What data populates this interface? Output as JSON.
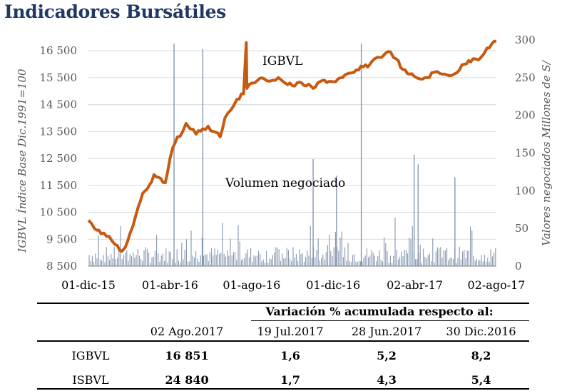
{
  "title": "Indicadores Bursátiles",
  "chart_data": {
    "type": "line+bar",
    "ylabel": "IGBVL Índice Base Dic.1991=100",
    "y2label": "Valores negociados Millones de S/",
    "ylim": [
      8500,
      16900
    ],
    "yticks": [
      "8 500",
      "9 500",
      "10 500",
      "11 500",
      "12 500",
      "13 500",
      "14 500",
      "15 500",
      "16 500"
    ],
    "y2lim": [
      0,
      300
    ],
    "y2ticks": [
      "0",
      "50",
      "100",
      "150",
      "200",
      "250",
      "300"
    ],
    "xticks": [
      "01-dic-15",
      "01-abr-16",
      "01-ago-16",
      "01-dic-16",
      "02-abr-17",
      "02-ago-17"
    ],
    "series": [
      {
        "name": "IGBVL",
        "kind": "line",
        "color": "#c55a11",
        "x": [
          "2015-12-01",
          "2015-12-10",
          "2015-12-20",
          "2016-01-01",
          "2016-01-10",
          "2016-01-20",
          "2016-01-25",
          "2016-02-01",
          "2016-02-10",
          "2016-02-20",
          "2016-03-01",
          "2016-03-08",
          "2016-03-15",
          "2016-03-25",
          "2016-04-01",
          "2016-04-05",
          "2016-04-12",
          "2016-04-20",
          "2016-04-25",
          "2016-05-01",
          "2016-05-10",
          "2016-05-20",
          "2016-05-28",
          "2016-06-05",
          "2016-06-15",
          "2016-06-22",
          "2016-07-01",
          "2016-07-10",
          "2016-07-20",
          "2016-07-24",
          "2016-07-25",
          "2016-08-01",
          "2016-08-10",
          "2016-08-20",
          "2016-09-01",
          "2016-09-10",
          "2016-09-20",
          "2016-10-01",
          "2016-10-15",
          "2016-11-01",
          "2016-11-15",
          "2016-12-01",
          "2016-12-15",
          "2017-01-01",
          "2017-01-15",
          "2017-01-25",
          "2017-02-01",
          "2017-02-15",
          "2017-02-25",
          "2017-03-05",
          "2017-03-15",
          "2017-03-22",
          "2017-04-01",
          "2017-04-10",
          "2017-04-20",
          "2017-05-01",
          "2017-05-10",
          "2017-05-20",
          "2017-06-01",
          "2017-06-15",
          "2017-06-28",
          "2017-07-10",
          "2017-07-19",
          "2017-07-26",
          "2017-08-02"
        ],
        "values": [
          10200,
          9900,
          9700,
          9600,
          9300,
          9050,
          9200,
          9700,
          10400,
          11200,
          11500,
          11900,
          11800,
          11600,
          12500,
          12900,
          13300,
          13500,
          13800,
          13600,
          13400,
          13600,
          13700,
          13500,
          13300,
          14000,
          14300,
          14700,
          14900,
          16800,
          15100,
          15300,
          15400,
          15450,
          15400,
          15500,
          15300,
          15200,
          15300,
          15100,
          15400,
          15350,
          15500,
          15700,
          15900,
          16000,
          16200,
          16350,
          16450,
          16200,
          15800,
          15650,
          15550,
          15450,
          15500,
          15700,
          15650,
          15600,
          15650,
          16000,
          16200,
          16250,
          16600,
          16750,
          16851
        ]
      },
      {
        "name": "Volumen negociado",
        "kind": "bar",
        "color": "#8497b0",
        "peaks": [
          {
            "x": "2016-04-07",
            "value": 295
          },
          {
            "x": "2016-05-20",
            "value": 288
          },
          {
            "x": "2016-11-01",
            "value": 142
          },
          {
            "x": "2016-12-06",
            "value": 120
          },
          {
            "x": "2017-01-12",
            "value": 295
          },
          {
            "x": "2017-04-01",
            "value": 148
          },
          {
            "x": "2017-04-07",
            "value": 135
          },
          {
            "x": "2017-06-01",
            "value": 118
          }
        ]
      }
    ],
    "annotations": [
      "IGBVL",
      "Volumen negociado"
    ]
  },
  "table": {
    "header_span": "Variación % acumulada respecto al:",
    "columns": [
      "02 Ago.2017",
      "19 Jul.2017",
      "28 Jun.2017",
      "30 Dic.2016"
    ],
    "rows": [
      {
        "label": "IGBVL",
        "values": [
          "16 851",
          "1,6",
          "5,2",
          "8,2"
        ]
      },
      {
        "label": "ISBVL",
        "values": [
          "24 840",
          "1,7",
          "4,3",
          "5,4"
        ]
      }
    ]
  }
}
